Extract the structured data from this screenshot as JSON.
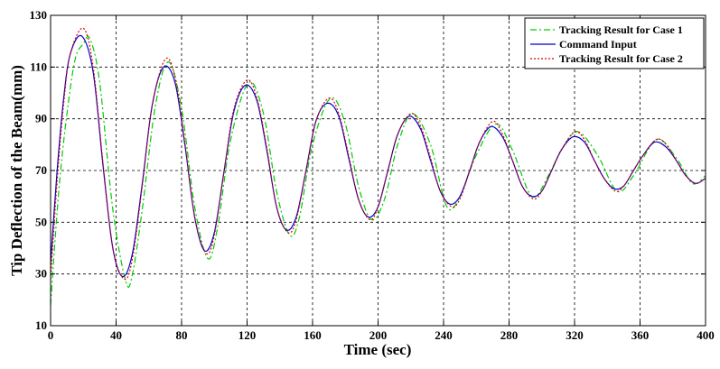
{
  "chart_data": {
    "type": "line",
    "title": "",
    "xlabel": "Time (sec)",
    "ylabel": "Tip Deflection of the Beam(mm)",
    "xlim": [
      0,
      400
    ],
    "ylim": [
      10,
      130
    ],
    "xticks": [
      0,
      40,
      80,
      120,
      160,
      200,
      240,
      280,
      320,
      360,
      400
    ],
    "yticks": [
      10,
      30,
      50,
      70,
      90,
      110,
      130
    ],
    "grid": true,
    "legend_position": "top-right",
    "series": [
      {
        "name": "Tracking Result for Case 1",
        "color": "#00cc00",
        "style": "dash-dot",
        "x": [
          0,
          5,
          10,
          15,
          20,
          24,
          30,
          38,
          46,
          50,
          56,
          64,
          72,
          80,
          88,
          96,
          102,
          110,
          121,
          130,
          138,
          146,
          152,
          160,
          171,
          180,
          188,
          196,
          204,
          212,
          221,
          232,
          242,
          250,
          260,
          272,
          282,
          294,
          304,
          312,
          322,
          334,
          346,
          356,
          370,
          382,
          392,
          400
        ],
        "y": [
          18,
          62,
          92,
          113,
          119,
          121,
          104,
          55,
          27,
          30,
          55,
          95,
          112,
          94,
          56,
          36,
          48,
          82,
          104,
          92,
          62,
          45,
          52,
          80,
          98,
          88,
          64,
          51,
          59,
          80,
          92,
          80,
          56,
          60,
          76,
          88,
          78,
          60,
          68,
          78,
          85,
          76,
          62,
          68,
          82,
          75,
          65,
          68
        ]
      },
      {
        "name": "Command Input",
        "color": "#0000cc",
        "style": "solid",
        "x": [
          0,
          4,
          8,
          12,
          19,
          26,
          32,
          38,
          44,
          50,
          56,
          62,
          69,
          76,
          82,
          88,
          94,
          100,
          106,
          112,
          119,
          126,
          132,
          138,
          144,
          150,
          156,
          162,
          169,
          176,
          182,
          188,
          194,
          200,
          206,
          212,
          219,
          226,
          232,
          238,
          244,
          250,
          256,
          262,
          269,
          276,
          282,
          288,
          294,
          300,
          306,
          312,
          319,
          326,
          332,
          338,
          344,
          350,
          356,
          362,
          369,
          376,
          382,
          388,
          394,
          400
        ],
        "y": [
          34,
          70,
          98,
          115,
          122,
          108,
          72,
          40,
          29,
          38,
          65,
          95,
          110,
          104,
          80,
          52,
          39,
          46,
          70,
          93,
          103,
          97,
          78,
          56,
          47,
          52,
          70,
          89,
          96,
          91,
          75,
          59,
          52,
          56,
          70,
          84,
          91,
          86,
          74,
          62,
          57,
          60,
          70,
          81,
          87,
          83,
          74,
          64,
          60,
          62,
          70,
          78,
          83,
          81,
          74,
          67,
          63,
          64,
          70,
          76,
          81,
          79,
          74,
          68,
          65,
          67
        ]
      },
      {
        "name": "Tracking Result for Case 2",
        "color": "#dd0000",
        "style": "dotted",
        "x": [
          0,
          4,
          8,
          12,
          20,
          26,
          32,
          38,
          45,
          50,
          56,
          62,
          70,
          76,
          82,
          88,
          95,
          100,
          106,
          112,
          120,
          126,
          132,
          138,
          145,
          150,
          156,
          162,
          170,
          176,
          182,
          188,
          195,
          200,
          206,
          212,
          220,
          226,
          232,
          238,
          245,
          250,
          256,
          262,
          270,
          276,
          282,
          288,
          295,
          300,
          306,
          312,
          320,
          326,
          332,
          338,
          345,
          350,
          356,
          362,
          370,
          376,
          382,
          388,
          394,
          400
        ],
        "y": [
          28,
          66,
          96,
          115,
          125,
          110,
          73,
          40,
          28,
          36,
          64,
          95,
          113,
          106,
          81,
          52,
          38,
          45,
          70,
          94,
          105,
          98,
          79,
          56,
          46,
          51,
          70,
          89,
          98,
          92,
          76,
          59,
          51,
          56,
          70,
          84,
          92,
          87,
          75,
          62,
          56,
          59,
          70,
          81,
          89,
          84,
          74,
          64,
          59,
          62,
          70,
          78,
          85,
          82,
          74,
          67,
          62,
          64,
          70,
          76,
          82,
          80,
          74,
          68,
          65,
          67
        ]
      }
    ]
  }
}
